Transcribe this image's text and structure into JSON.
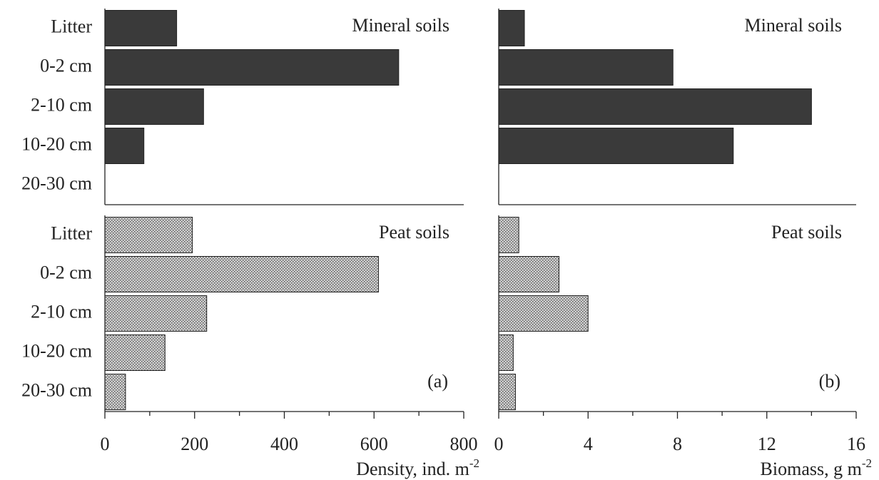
{
  "chart_data": [
    {
      "type": "bar",
      "orientation": "horizontal",
      "annotation": "Mineral soils",
      "categories": [
        "Litter",
        "0-2 cm",
        "2-10 cm",
        "10-20 cm",
        "20-30 cm"
      ],
      "values": [
        160,
        655,
        220,
        87,
        0
      ],
      "color": "#3a3a3a",
      "stipple": false,
      "xlim": [
        0,
        800
      ]
    },
    {
      "type": "bar",
      "orientation": "horizontal",
      "annotation": "Mineral soils",
      "values": [
        1.15,
        7.8,
        14.0,
        10.5,
        0
      ],
      "color": "#3a3a3a",
      "stipple": false,
      "xlim": [
        0,
        16
      ]
    },
    {
      "type": "bar",
      "orientation": "horizontal",
      "annotation": "Peat soils",
      "panel_label": "(a)",
      "categories": [
        "Litter",
        "0-2 cm",
        "2-10 cm",
        "10-20 cm",
        "20-30 cm"
      ],
      "values": [
        195,
        610,
        227,
        134,
        46
      ],
      "color": "#a8a8a8",
      "stipple": true,
      "xlim": [
        0,
        800
      ],
      "xticks": [
        0,
        200,
        400,
        600,
        800
      ],
      "xminorticks": [
        100,
        300,
        500,
        700
      ],
      "x_label": "Density, ind. m",
      "x_label_sup": "-2"
    },
    {
      "type": "bar",
      "orientation": "horizontal",
      "annotation": "Peat soils",
      "panel_label": "(b)",
      "values": [
        0.9,
        2.7,
        4.0,
        0.65,
        0.75
      ],
      "color": "#a8a8a8",
      "stipple": true,
      "xlim": [
        0,
        16
      ],
      "xticks": [
        0,
        4,
        8,
        12,
        16
      ],
      "xminorticks": [
        2,
        6,
        10,
        14
      ],
      "x_label": "Biomass, g m",
      "x_label_sup": "-2"
    }
  ]
}
